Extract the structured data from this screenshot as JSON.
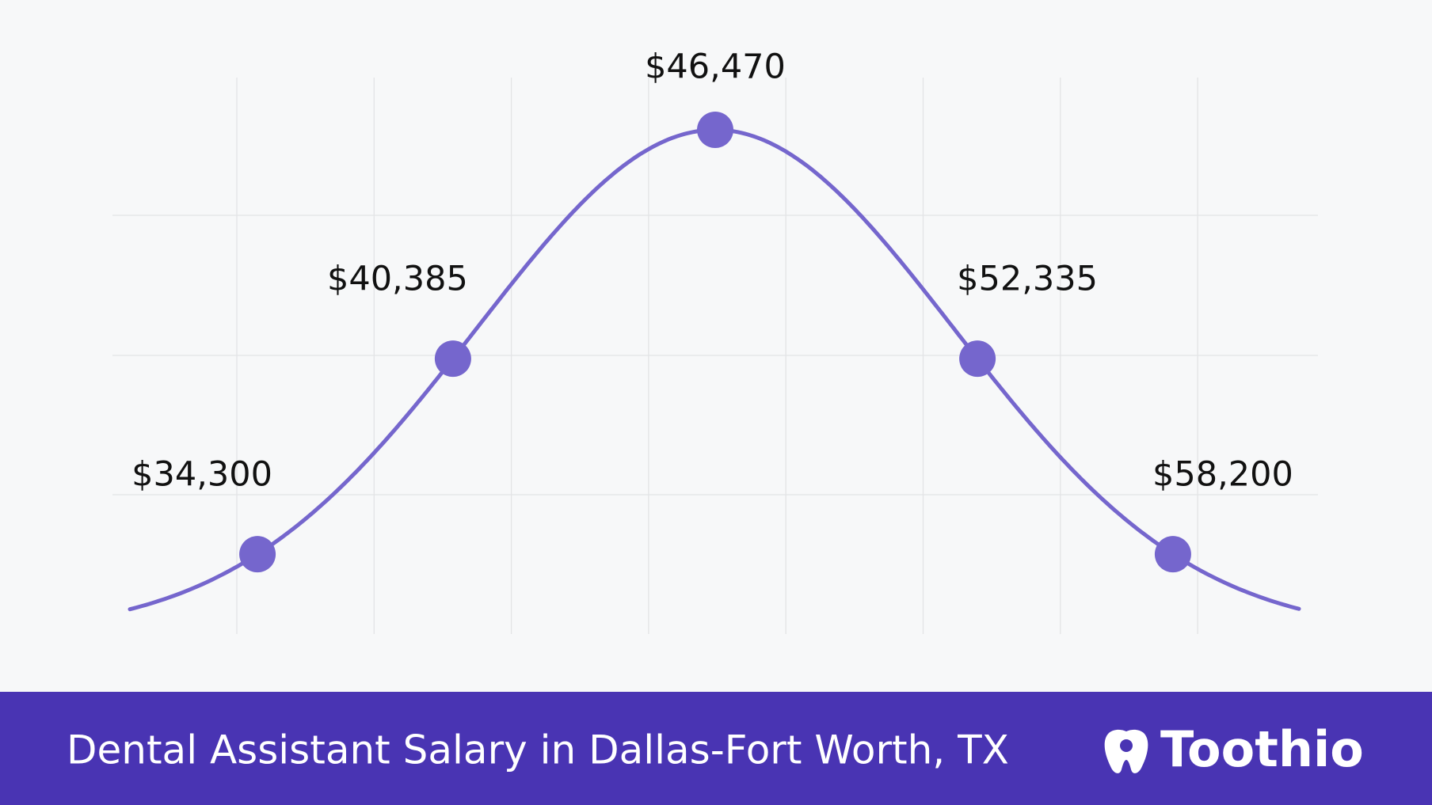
{
  "chart_data": {
    "type": "bell-curve",
    "title": "Dental Assistant Salary in Dallas-Fort Worth, TX",
    "values": [
      34300,
      40385,
      46470,
      52335,
      58200
    ],
    "value_labels": [
      "$34,300",
      "$40,385",
      "$46,470",
      "$52,335",
      "$58,200"
    ],
    "color": "#7566cd",
    "grid": true
  },
  "brand": "Toothio"
}
